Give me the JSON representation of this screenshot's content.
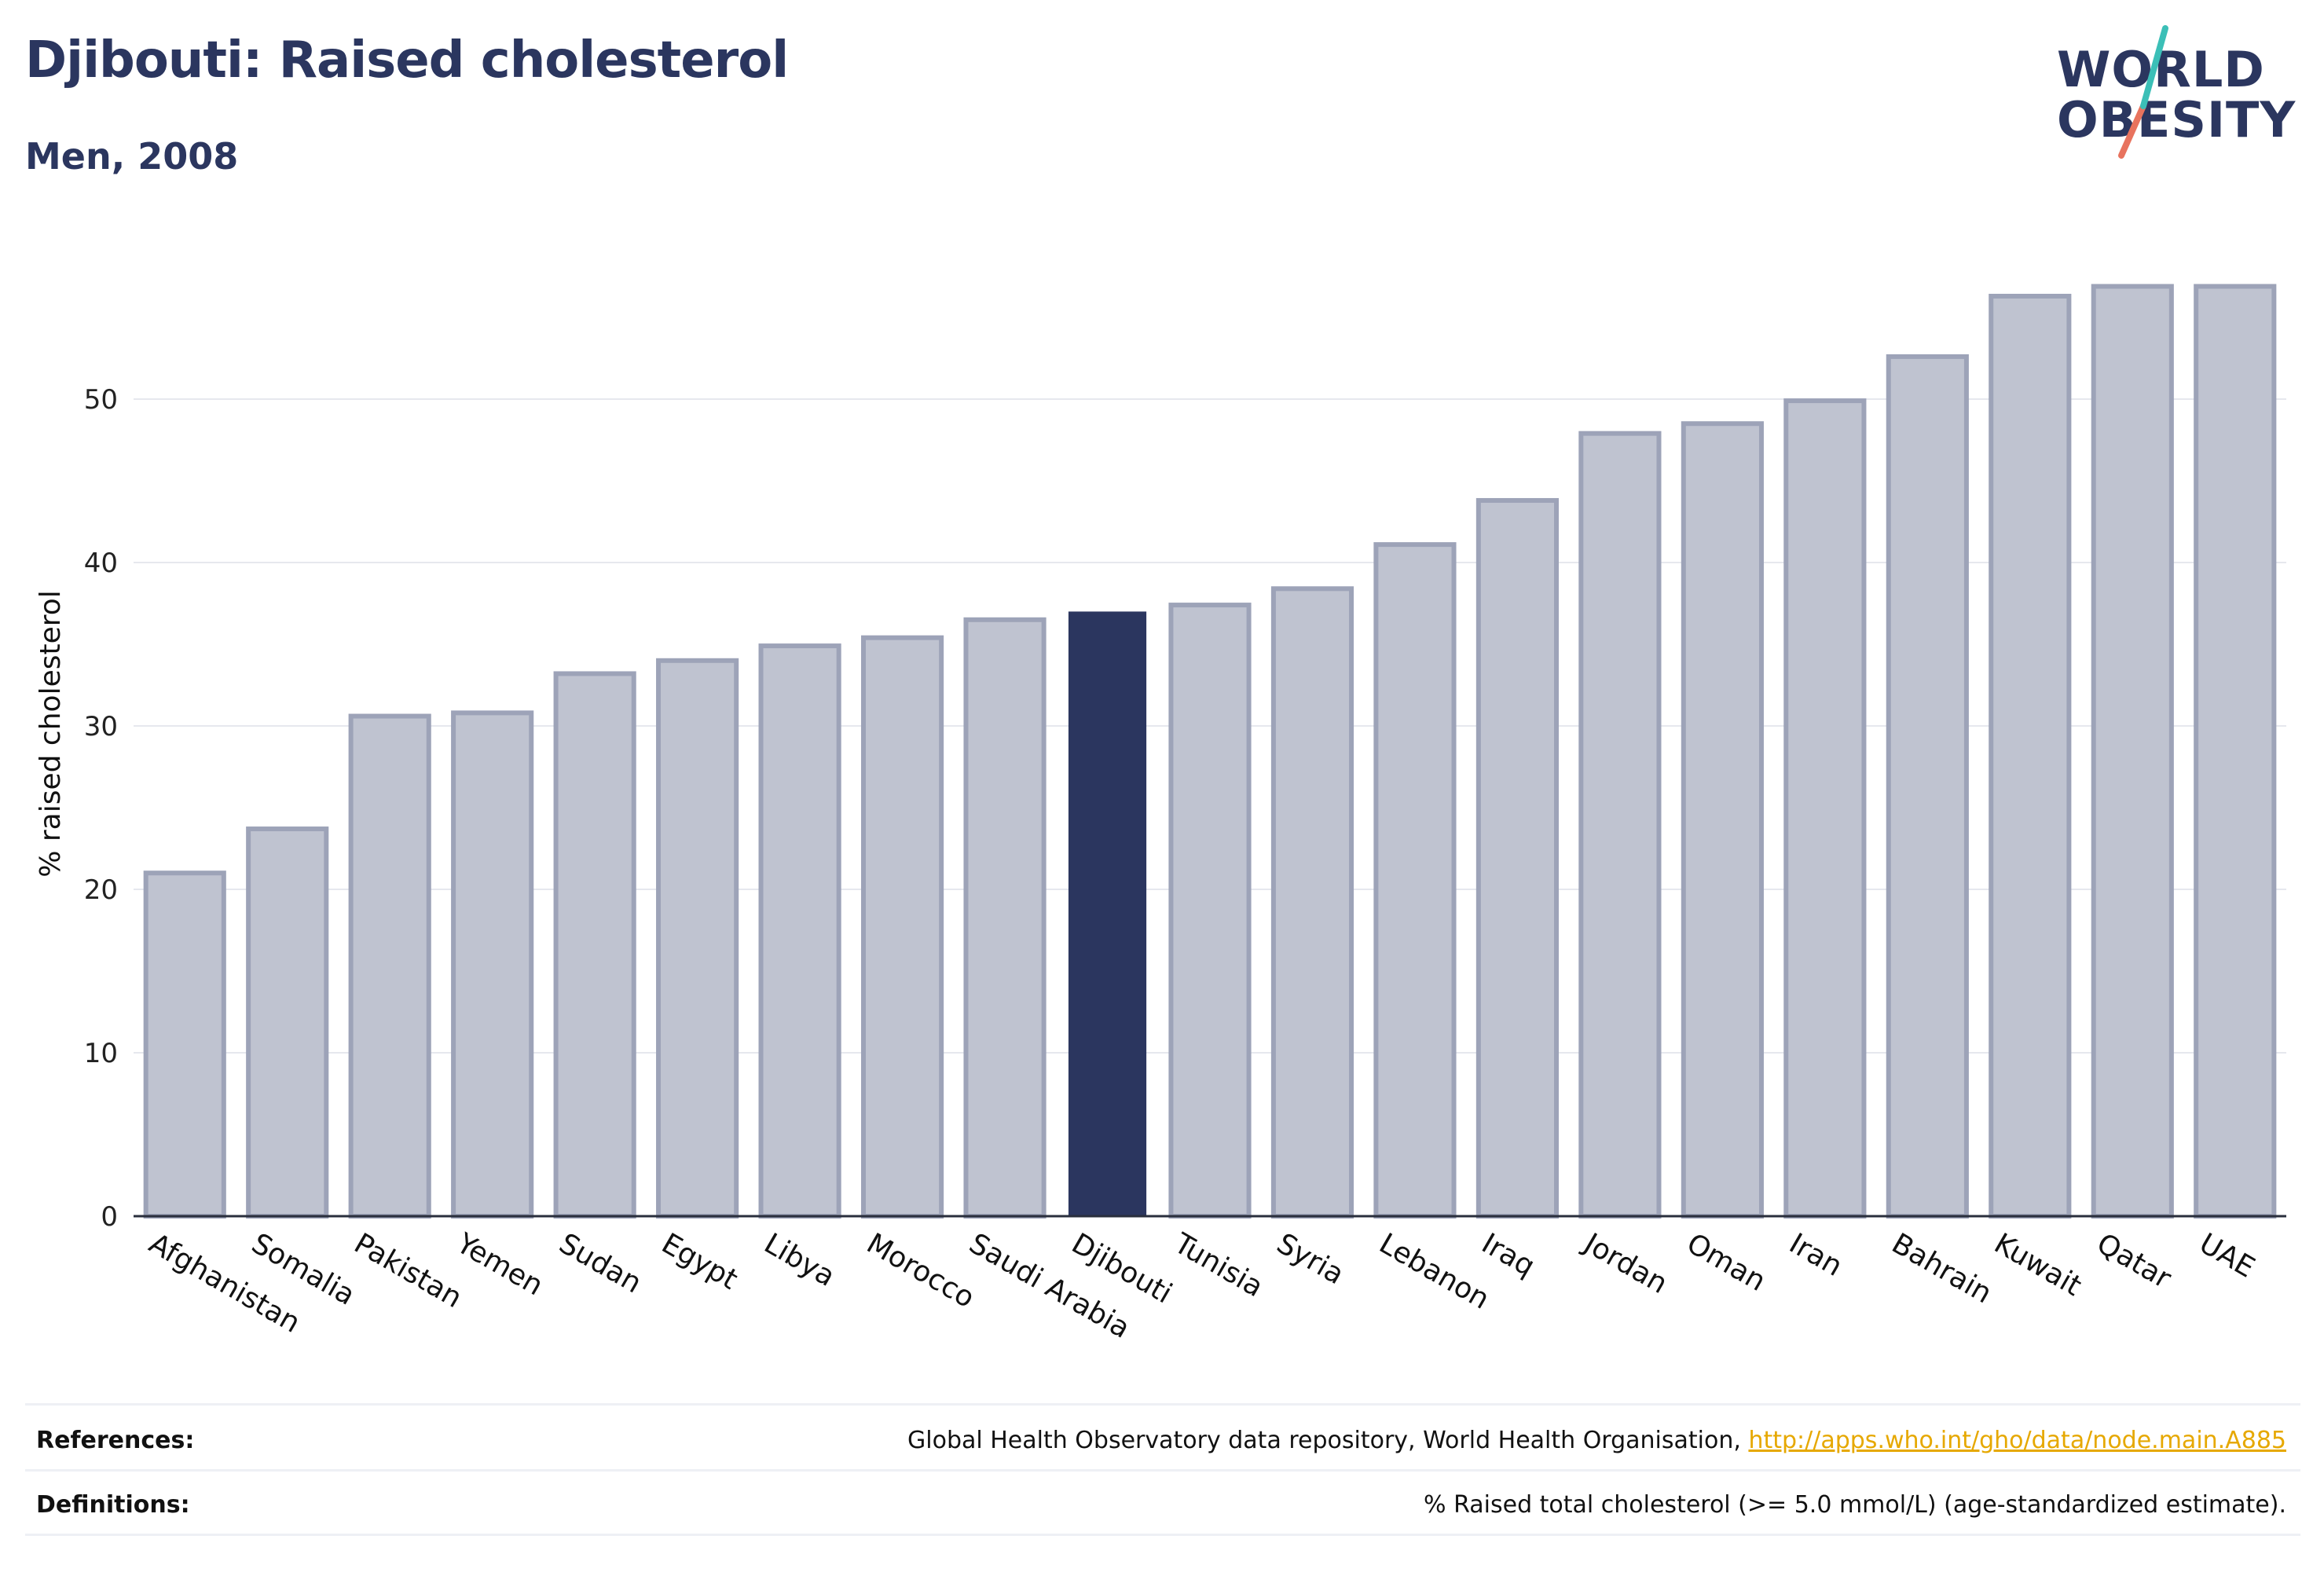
{
  "title": "Djibouti: Raised cholesterol",
  "subtitle": "Men, 2008",
  "logo": {
    "line1": "WORLD",
    "line2": "OBESITY"
  },
  "colors": {
    "highlight": "#2b365f",
    "bar_fill": "#bfc3d0",
    "bar_stroke": "#9da3b8",
    "title": "#2b365f",
    "link": "#e6a800",
    "logo_teal": "#3bbfb7",
    "logo_coral": "#e8735e"
  },
  "chart_data": {
    "type": "bar",
    "categories": [
      "Afghanistan",
      "Somalia",
      "Pakistan",
      "Yemen",
      "Sudan",
      "Egypt",
      "Libya",
      "Morocco",
      "Saudi Arabia",
      "Djibouti",
      "Tunisia",
      "Syria",
      "Lebanon",
      "Iraq",
      "Jordan",
      "Oman",
      "Iran",
      "Bahrain",
      "Kuwait",
      "Qatar",
      "UAE"
    ],
    "values": [
      21.0,
      23.7,
      30.6,
      30.8,
      33.2,
      34.0,
      34.9,
      35.4,
      36.5,
      37.0,
      37.4,
      38.4,
      41.1,
      43.8,
      47.9,
      48.5,
      49.9,
      52.6,
      56.3,
      56.9,
      56.9
    ],
    "highlight": "Djibouti",
    "ylabel": "% raised cholesterol",
    "xlabel": "",
    "yticks": [
      0,
      10,
      20,
      30,
      40,
      50
    ],
    "ylim": [
      0,
      60
    ],
    "grid": true,
    "legend": "none"
  },
  "footer": {
    "references_label": "References:",
    "references_text": "Global Health Observatory data repository, World Health Organisation, ",
    "references_link": "http://apps.who.int/gho/data/node.main.A885",
    "definitions_label": "Definitions:",
    "definitions_text": "% Raised total cholesterol (>= 5.0 mmol/L) (age-standardized estimate)."
  }
}
